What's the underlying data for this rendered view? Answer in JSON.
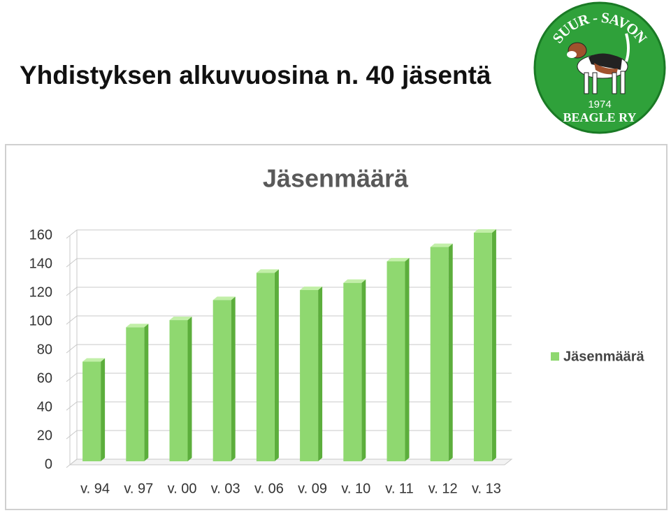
{
  "slide_title": "Yhdistyksen alkuvuosina n. 40 jäsentä",
  "logo": {
    "top_text": "SUUR - SAVON",
    "year": "1974",
    "bottom_text": "BEAGLE RY"
  },
  "chart_data": {
    "type": "bar",
    "title": "Jäsenmäärä",
    "categories": [
      "v. 94",
      "v. 97",
      "v. 00",
      "v. 03",
      "v. 06",
      "v. 09",
      "v. 10",
      "v. 11",
      "v. 12",
      "v. 13"
    ],
    "series": [
      {
        "name": "Jäsenmäärä",
        "color": "#8fd870",
        "values": [
          70,
          94,
          99,
          113,
          132,
          120,
          125,
          140,
          150,
          160
        ]
      }
    ],
    "ylim": [
      0,
      160
    ],
    "yticks": [
      0,
      20,
      40,
      60,
      80,
      100,
      120,
      140,
      160
    ],
    "grid": true,
    "legend": "right"
  }
}
